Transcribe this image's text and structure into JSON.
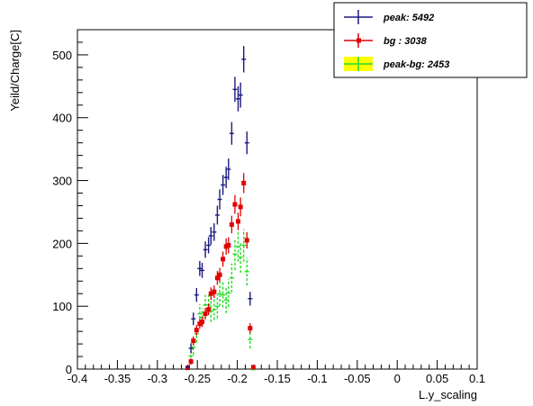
{
  "chart_data": {
    "type": "scatter",
    "title": "",
    "xlabel": "L.y_scaling",
    "ylabel": "Yeild/Charge[C]",
    "xlim": [
      -0.4,
      0.1
    ],
    "ylim": [
      0,
      540
    ],
    "xticks": [
      -0.4,
      -0.35,
      -0.3,
      -0.25,
      -0.2,
      -0.15,
      -0.1,
      -0.05,
      0,
      0.05,
      0.1
    ],
    "xtick_labels": [
      "-0.4",
      "-0.35",
      "-0.3",
      "-0.25",
      "-0.2",
      "-0.15",
      "-0.1",
      "-0.05",
      "0",
      "0.05",
      "0.1"
    ],
    "yticks": [
      0,
      100,
      200,
      300,
      400,
      500
    ],
    "ytick_labels": [
      "0",
      "100",
      "200",
      "300",
      "400",
      "500"
    ],
    "grid": false,
    "legend_position": "top-right",
    "series": [
      {
        "name": "peak: 5492",
        "color": "#1a1a80",
        "marker": "cross",
        "points": [
          [
            -0.262,
            3,
            4
          ],
          [
            -0.258,
            33,
            8
          ],
          [
            -0.255,
            80,
            10
          ],
          [
            -0.251,
            118,
            11
          ],
          [
            -0.247,
            160,
            12
          ],
          [
            -0.244,
            157,
            12
          ],
          [
            -0.24,
            190,
            13
          ],
          [
            -0.236,
            197,
            13
          ],
          [
            -0.233,
            212,
            14
          ],
          [
            -0.229,
            218,
            14
          ],
          [
            -0.225,
            245,
            15
          ],
          [
            -0.222,
            270,
            16
          ],
          [
            -0.218,
            293,
            16
          ],
          [
            -0.214,
            305,
            17
          ],
          [
            -0.211,
            318,
            17
          ],
          [
            -0.207,
            375,
            18
          ],
          [
            -0.203,
            445,
            20
          ],
          [
            -0.199,
            430,
            20
          ],
          [
            -0.196,
            436,
            20
          ],
          [
            -0.192,
            493,
            21
          ],
          [
            -0.188,
            360,
            18
          ],
          [
            -0.184,
            112,
            11
          ]
        ]
      },
      {
        "name": "bg  : 3038",
        "color": "#e00000",
        "marker": "square",
        "points": [
          [
            -0.262,
            2,
            3
          ],
          [
            -0.258,
            12,
            5
          ],
          [
            -0.255,
            45,
            7
          ],
          [
            -0.251,
            62,
            8
          ],
          [
            -0.247,
            72,
            8
          ],
          [
            -0.244,
            75,
            8
          ],
          [
            -0.24,
            88,
            9
          ],
          [
            -0.236,
            95,
            9
          ],
          [
            -0.233,
            120,
            10
          ],
          [
            -0.229,
            123,
            10
          ],
          [
            -0.225,
            145,
            11
          ],
          [
            -0.222,
            150,
            11
          ],
          [
            -0.218,
            175,
            12
          ],
          [
            -0.214,
            195,
            13
          ],
          [
            -0.211,
            197,
            13
          ],
          [
            -0.207,
            230,
            14
          ],
          [
            -0.203,
            262,
            15
          ],
          [
            -0.199,
            235,
            14
          ],
          [
            -0.196,
            258,
            15
          ],
          [
            -0.192,
            296,
            16
          ],
          [
            -0.188,
            205,
            13
          ],
          [
            -0.184,
            65,
            8
          ],
          [
            -0.18,
            3,
            3
          ]
        ]
      },
      {
        "name": "peak-bg: 2453",
        "color": "#22dd22",
        "marker": "cross",
        "points": [
          [
            -0.262,
            1,
            5
          ],
          [
            -0.258,
            21,
            10
          ],
          [
            -0.255,
            35,
            12
          ],
          [
            -0.251,
            56,
            14
          ],
          [
            -0.247,
            88,
            15
          ],
          [
            -0.244,
            82,
            15
          ],
          [
            -0.24,
            102,
            16
          ],
          [
            -0.236,
            102,
            16
          ],
          [
            -0.233,
            92,
            17
          ],
          [
            -0.229,
            95,
            17
          ],
          [
            -0.225,
            100,
            19
          ],
          [
            -0.222,
            120,
            20
          ],
          [
            -0.218,
            118,
            20
          ],
          [
            -0.214,
            110,
            21
          ],
          [
            -0.211,
            121,
            22
          ],
          [
            -0.207,
            145,
            23
          ],
          [
            -0.203,
            183,
            25
          ],
          [
            -0.199,
            195,
            24
          ],
          [
            -0.196,
            178,
            25
          ],
          [
            -0.192,
            197,
            26
          ],
          [
            -0.188,
            155,
            22
          ],
          [
            -0.184,
            47,
            14
          ],
          [
            -0.18,
            -1,
            4
          ]
        ]
      }
    ]
  }
}
